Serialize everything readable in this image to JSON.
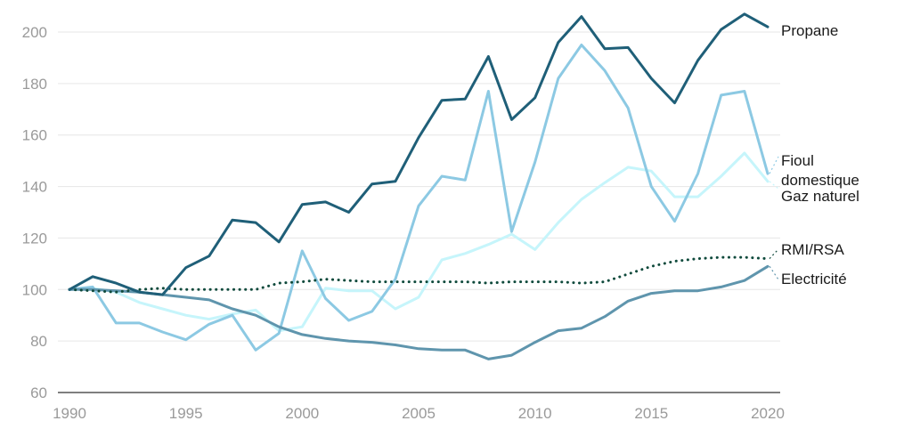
{
  "chart_data": {
    "type": "line",
    "title": "",
    "xlabel": "",
    "ylabel": "",
    "xlim": [
      1990,
      2020
    ],
    "ylim": [
      60,
      210
    ],
    "grid": true,
    "legend": "direct labels at right end of lines",
    "x_ticks": [
      "1990",
      "1995",
      "2000",
      "2005",
      "2010",
      "2015",
      "2020"
    ],
    "y_ticks": [
      "60",
      "80",
      "100",
      "120",
      "140",
      "160",
      "180",
      "200"
    ],
    "x": [
      1990,
      1991,
      1992,
      1993,
      1994,
      1995,
      1996,
      1997,
      1998,
      1999,
      2000,
      2001,
      2002,
      2003,
      2004,
      2005,
      2006,
      2007,
      2008,
      2009,
      2010,
      2011,
      2012,
      2013,
      2014,
      2015,
      2016,
      2017,
      2018,
      2019,
      2020
    ],
    "series": [
      {
        "name": "Propane",
        "color": "#1f5f78",
        "style": "solid",
        "values": [
          100,
          105,
          102.5,
          99,
          98,
          108.5,
          113,
          127,
          126,
          118.5,
          133,
          134,
          130,
          141,
          142,
          159,
          173.5,
          174,
          190.5,
          166,
          174.5,
          196,
          206,
          193.5,
          194,
          182,
          172.5,
          189,
          201,
          207,
          202
        ]
      },
      {
        "name": "Fioul domestique",
        "color": "#8cc9e3",
        "style": "solid",
        "values": [
          100,
          101,
          87,
          87,
          83.5,
          80.5,
          86.5,
          90,
          76.5,
          83,
          115,
          96.5,
          88,
          91.5,
          104,
          132.5,
          144,
          142.5,
          177,
          122.5,
          149.5,
          182,
          195,
          185,
          170.5,
          140,
          126.5,
          145,
          175.5,
          177,
          145
        ]
      },
      {
        "name": "Gaz naturel",
        "color": "#c6f5fb",
        "style": "solid",
        "values": [
          100,
          100.5,
          99,
          95,
          92.5,
          90,
          88.5,
          90.5,
          92,
          84,
          85.5,
          100.5,
          99.5,
          99.5,
          92.5,
          97,
          111.5,
          114,
          117.5,
          121.5,
          115.5,
          126,
          135,
          141.5,
          147.5,
          146,
          136,
          136,
          144,
          153,
          142
        ]
      },
      {
        "name": "RMI/RSA",
        "color": "#0f4a3c",
        "style": "dotted",
        "values": [
          100,
          99.5,
          99,
          100,
          100.5,
          100,
          100,
          100,
          100,
          102.5,
          103,
          104,
          103.5,
          103,
          103,
          103,
          103,
          103,
          102.5,
          103,
          103,
          103,
          102.5,
          103,
          106,
          109,
          111,
          112,
          112.5,
          112.5,
          112
        ]
      },
      {
        "name": "Electricité",
        "color": "#5f95ad",
        "style": "solid",
        "values": [
          100,
          100,
          99.5,
          99,
          98,
          97,
          96,
          92.5,
          90,
          85.5,
          82.5,
          81,
          80,
          79.5,
          78.5,
          77,
          76.5,
          76.5,
          73,
          74.5,
          79.5,
          84,
          85,
          89.5,
          95.5,
          98.5,
          99.5,
          99.5,
          101,
          103.5,
          109
        ]
      }
    ]
  }
}
